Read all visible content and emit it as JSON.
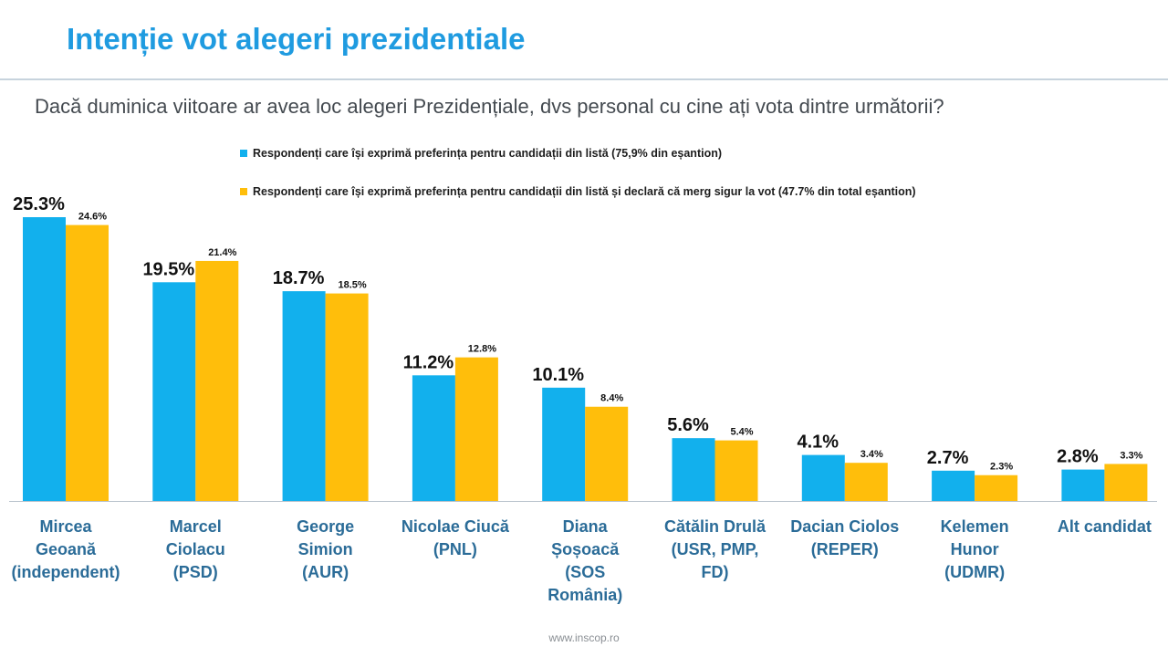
{
  "header": {
    "title": "Intenție vot alegeri prezidentiale",
    "subtitle": "Dacă duminica viitoare ar avea loc alegeri Prezidențiale, dvs personal cu cine ați vota dintre următorii?"
  },
  "footer": {
    "source": "www.inscop.ro"
  },
  "chart_data": {
    "type": "bar",
    "title": "Intenție vot alegeri prezidentiale",
    "categories": [
      "Mircea Geoană (independent)",
      "Marcel Ciolacu (PSD)",
      "George Simion (AUR)",
      "Nicolae Ciucă (PNL)",
      "Diana Șoșoacă (SOS România)",
      "Cătălin Drulă (USR, PMP, FD)",
      "Dacian Ciolos (REPER)",
      "Kelemen Hunor (UDMR)",
      "Alt candidat"
    ],
    "category_lines": [
      [
        "Mircea",
        "Geoană",
        "(independent)"
      ],
      [
        "Marcel",
        "Ciolacu",
        "(PSD)"
      ],
      [
        "George",
        "Simion",
        "(AUR)"
      ],
      [
        "Nicolae Ciucă",
        "(PNL)"
      ],
      [
        "Diana",
        "Șoșoacă",
        "(SOS",
        "România)"
      ],
      [
        "Cătălin Drulă",
        "(USR, PMP,",
        "FD)"
      ],
      [
        "Dacian Ciolos",
        "(REPER)"
      ],
      [
        "Kelemen",
        "Hunor",
        "(UDMR)"
      ],
      [
        "Alt candidat"
      ]
    ],
    "series": [
      {
        "name": "Respondenți care își exprimă preferința pentru candidații din listă (75,9% din eșantion)",
        "color": "#12b0ed",
        "values": [
          25.3,
          19.5,
          18.7,
          11.2,
          10.1,
          5.6,
          4.1,
          2.7,
          2.8
        ],
        "labels": [
          "25.3%",
          "19.5%",
          "18.7%",
          "11.2%",
          "10.1%",
          "5.6%",
          "4.1%",
          "2.7%",
          "2.8%"
        ]
      },
      {
        "name": "Respondenți care își exprimă preferința pentru candidații din listă și declară că merg sigur la vot (47.7% din total eșantion)",
        "color": "#ffbe0b",
        "values": [
          24.6,
          21.4,
          18.5,
          12.8,
          8.4,
          5.4,
          3.4,
          2.3,
          3.3
        ],
        "labels": [
          "24.6%",
          "21.4%",
          "18.5%",
          "12.8%",
          "8.4%",
          "5.4%",
          "3.4%",
          "2.3%",
          "3.3%"
        ]
      }
    ],
    "ylim": [
      0,
      25.3
    ],
    "grid": false,
    "legend_position": "top"
  }
}
